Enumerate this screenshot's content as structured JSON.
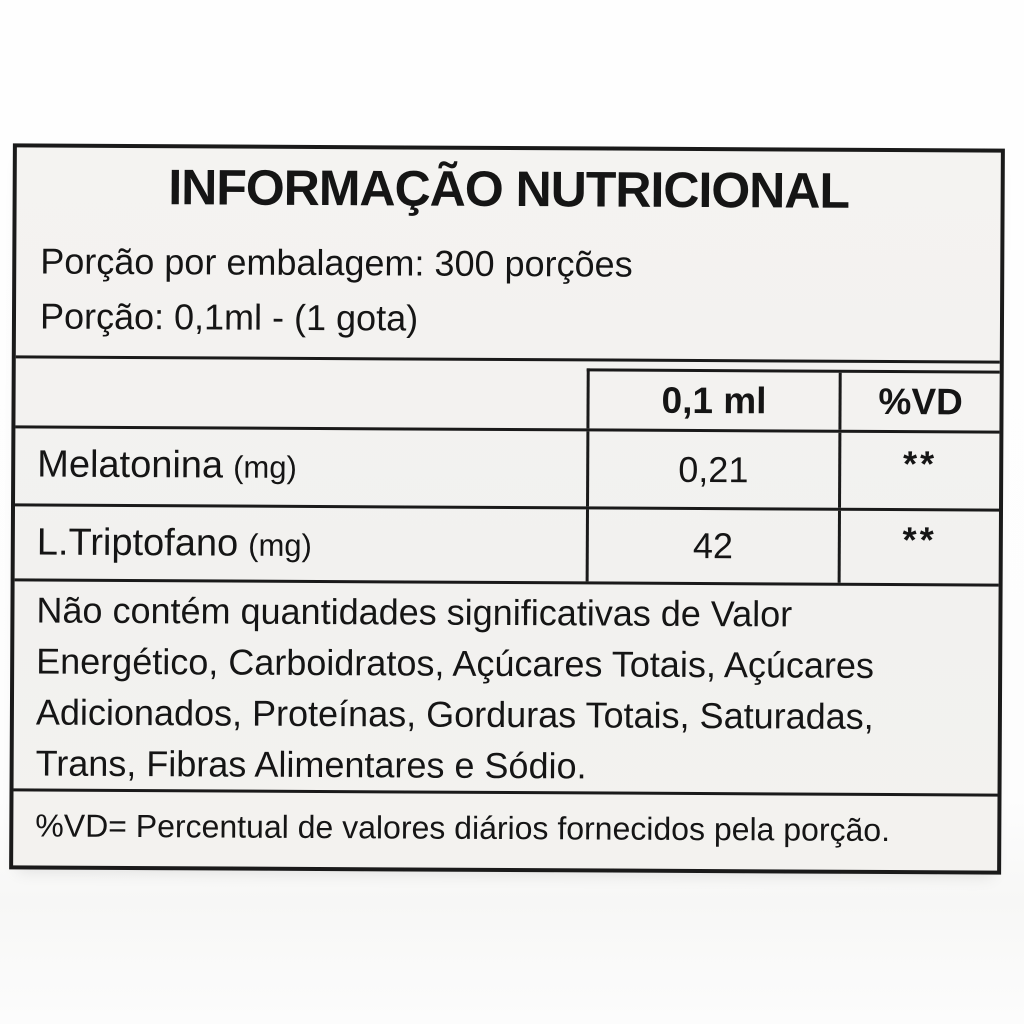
{
  "label": {
    "title": "INFORMAÇÃO NUTRICIONAL",
    "servings_per_package": "Porção por embalagem: 300 porções",
    "serving_size": "Porção: 0,1ml - (1 gota)",
    "table": {
      "amount_header": "0,1 ml",
      "vd_header": "%VD",
      "rows": [
        {
          "nutrient": "Melatonina",
          "unit": "(mg)",
          "amount": "0,21",
          "vd": "**"
        },
        {
          "nutrient": "L.Triptofano",
          "unit": "(mg)",
          "amount": "42",
          "vd": "**"
        }
      ]
    },
    "disclaimer_lines": [
      "Não contém quantidades significativas de Valor",
      "Energético, Carboidratos, Açúcares Totais, Açúcares",
      "Adicionados, Proteínas, Gorduras Totais, Saturadas,",
      "Trans, Fibras Alimentares e Sódio."
    ],
    "footnote": "%VD= Percentual de valores diários fornecidos pela porção.",
    "colors": {
      "border": "#1a1a1a",
      "label_bg": "#f3f2f0",
      "page_bg": "#fdfdfd",
      "text": "#151515"
    }
  }
}
